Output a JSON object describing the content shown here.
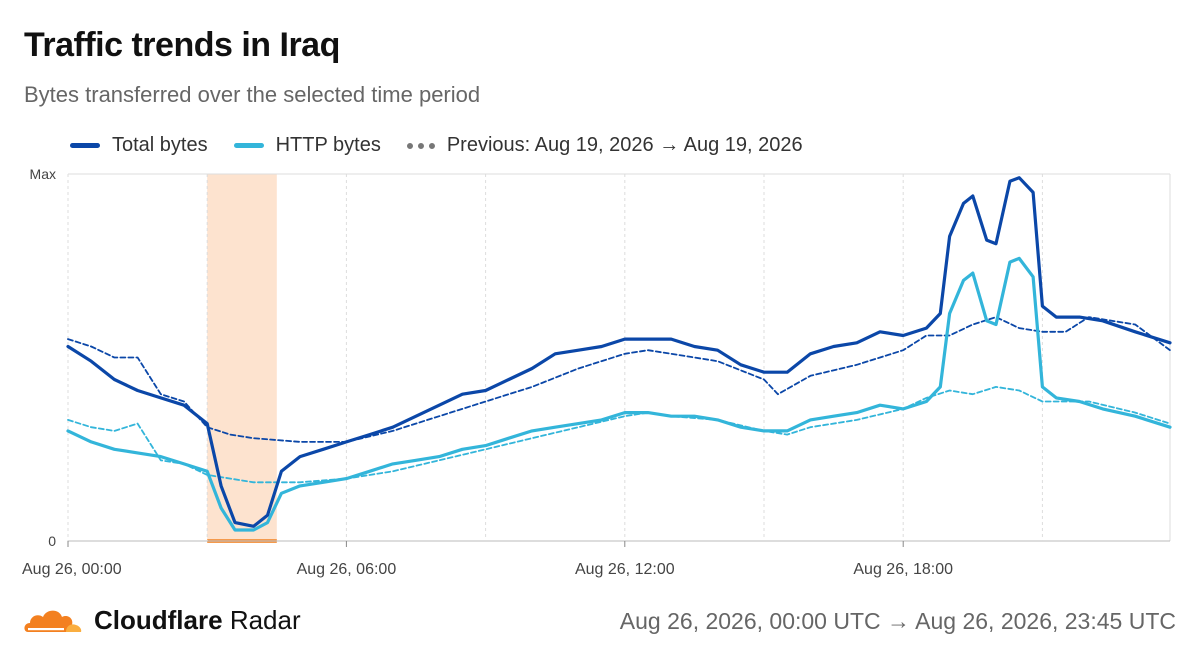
{
  "title": "Traffic trends in Iraq",
  "subtitle": "Bytes transferred over the selected time period",
  "legend": {
    "total": "Total bytes",
    "http": "HTTP bytes",
    "previous": "Previous: Aug 19, 2026 → Aug 19, 2026"
  },
  "colors": {
    "total": "#0b47a8",
    "http": "#33b5da",
    "previous_total": "#0b47a8",
    "previous_http": "#33b5da",
    "highlight_fill": "#fde3cf",
    "highlight_base": "#f59a4c",
    "grid": "#dddddd"
  },
  "footer": {
    "brand_bold": "Cloudflare",
    "brand_light": "Radar",
    "range": "Aug 26, 2026, 00:00 UTC → Aug 26, 2026, 23:45 UTC"
  },
  "chart_data": {
    "type": "line",
    "x_unit": "hours since Aug 26, 2026 00:00 UTC",
    "xlim": [
      0,
      23.75
    ],
    "ylim": [
      0,
      1
    ],
    "y_tick_labels": [
      "0",
      "Max"
    ],
    "x_ticks": [
      {
        "x": 0,
        "label": "Aug 26, 00:00"
      },
      {
        "x": 6,
        "label": "Aug 26, 06:00"
      },
      {
        "x": 12,
        "label": "Aug 26, 12:00"
      },
      {
        "x": 18,
        "label": "Aug 26, 18:00"
      }
    ],
    "minor_gridlines_x": [
      0,
      3,
      6,
      9,
      12,
      15,
      18,
      21
    ],
    "highlight_region": [
      3,
      4.5
    ],
    "grid": true,
    "legend_position": "top-left",
    "series": [
      {
        "name": "Total bytes",
        "style": "solid",
        "points": [
          [
            0,
            0.53
          ],
          [
            0.5,
            0.49
          ],
          [
            1,
            0.44
          ],
          [
            1.5,
            0.41
          ],
          [
            2,
            0.39
          ],
          [
            2.5,
            0.37
          ],
          [
            3,
            0.32
          ],
          [
            3.3,
            0.15
          ],
          [
            3.6,
            0.05
          ],
          [
            4,
            0.04
          ],
          [
            4.3,
            0.07
          ],
          [
            4.6,
            0.19
          ],
          [
            5,
            0.23
          ],
          [
            5.5,
            0.25
          ],
          [
            6,
            0.27
          ],
          [
            6.5,
            0.29
          ],
          [
            7,
            0.31
          ],
          [
            7.5,
            0.34
          ],
          [
            8,
            0.37
          ],
          [
            8.5,
            0.4
          ],
          [
            9,
            0.41
          ],
          [
            9.5,
            0.44
          ],
          [
            10,
            0.47
          ],
          [
            10.5,
            0.51
          ],
          [
            11,
            0.52
          ],
          [
            11.5,
            0.53
          ],
          [
            12,
            0.55
          ],
          [
            12.5,
            0.55
          ],
          [
            13,
            0.55
          ],
          [
            13.5,
            0.53
          ],
          [
            14,
            0.52
          ],
          [
            14.5,
            0.48
          ],
          [
            15,
            0.46
          ],
          [
            15.5,
            0.46
          ],
          [
            16,
            0.51
          ],
          [
            16.5,
            0.53
          ],
          [
            17,
            0.54
          ],
          [
            17.5,
            0.57
          ],
          [
            18,
            0.56
          ],
          [
            18.5,
            0.58
          ],
          [
            18.8,
            0.62
          ],
          [
            19,
            0.83
          ],
          [
            19.3,
            0.92
          ],
          [
            19.5,
            0.94
          ],
          [
            19.8,
            0.82
          ],
          [
            20,
            0.81
          ],
          [
            20.3,
            0.98
          ],
          [
            20.5,
            0.99
          ],
          [
            20.8,
            0.95
          ],
          [
            21,
            0.64
          ],
          [
            21.3,
            0.61
          ],
          [
            21.8,
            0.61
          ],
          [
            22.3,
            0.6
          ],
          [
            23,
            0.57
          ],
          [
            23.75,
            0.54
          ]
        ]
      },
      {
        "name": "HTTP bytes",
        "style": "solid",
        "points": [
          [
            0,
            0.3
          ],
          [
            0.5,
            0.27
          ],
          [
            1,
            0.25
          ],
          [
            1.5,
            0.24
          ],
          [
            2,
            0.23
          ],
          [
            2.5,
            0.21
          ],
          [
            3,
            0.19
          ],
          [
            3.3,
            0.09
          ],
          [
            3.6,
            0.03
          ],
          [
            4,
            0.03
          ],
          [
            4.3,
            0.05
          ],
          [
            4.6,
            0.13
          ],
          [
            5,
            0.15
          ],
          [
            5.5,
            0.16
          ],
          [
            6,
            0.17
          ],
          [
            6.5,
            0.19
          ],
          [
            7,
            0.21
          ],
          [
            7.5,
            0.22
          ],
          [
            8,
            0.23
          ],
          [
            8.5,
            0.25
          ],
          [
            9,
            0.26
          ],
          [
            9.5,
            0.28
          ],
          [
            10,
            0.3
          ],
          [
            10.5,
            0.31
          ],
          [
            11,
            0.32
          ],
          [
            11.5,
            0.33
          ],
          [
            12,
            0.35
          ],
          [
            12.5,
            0.35
          ],
          [
            13,
            0.34
          ],
          [
            13.5,
            0.34
          ],
          [
            14,
            0.33
          ],
          [
            14.5,
            0.31
          ],
          [
            15,
            0.3
          ],
          [
            15.5,
            0.3
          ],
          [
            16,
            0.33
          ],
          [
            16.5,
            0.34
          ],
          [
            17,
            0.35
          ],
          [
            17.5,
            0.37
          ],
          [
            18,
            0.36
          ],
          [
            18.5,
            0.38
          ],
          [
            18.8,
            0.42
          ],
          [
            19,
            0.62
          ],
          [
            19.3,
            0.71
          ],
          [
            19.5,
            0.73
          ],
          [
            19.8,
            0.6
          ],
          [
            20,
            0.59
          ],
          [
            20.3,
            0.76
          ],
          [
            20.5,
            0.77
          ],
          [
            20.8,
            0.72
          ],
          [
            21,
            0.42
          ],
          [
            21.3,
            0.39
          ],
          [
            21.8,
            0.38
          ],
          [
            22.3,
            0.36
          ],
          [
            23,
            0.34
          ],
          [
            23.75,
            0.31
          ]
        ]
      },
      {
        "name": "Previous: Aug 19, 2026 → Aug 19, 2026",
        "style": "dashed",
        "points": [
          [
            0,
            0.55
          ],
          [
            0.5,
            0.53
          ],
          [
            1,
            0.5
          ],
          [
            1.5,
            0.5
          ],
          [
            2,
            0.4
          ],
          [
            2.5,
            0.38
          ],
          [
            3,
            0.31
          ],
          [
            3.5,
            0.29
          ],
          [
            4,
            0.28
          ],
          [
            5,
            0.27
          ],
          [
            6,
            0.27
          ],
          [
            7,
            0.3
          ],
          [
            8,
            0.34
          ],
          [
            9,
            0.38
          ],
          [
            10,
            0.42
          ],
          [
            11,
            0.47
          ],
          [
            12,
            0.51
          ],
          [
            12.5,
            0.52
          ],
          [
            13,
            0.51
          ],
          [
            14,
            0.49
          ],
          [
            15,
            0.44
          ],
          [
            15.3,
            0.4
          ],
          [
            16,
            0.45
          ],
          [
            17,
            0.48
          ],
          [
            18,
            0.52
          ],
          [
            18.5,
            0.56
          ],
          [
            19,
            0.56
          ],
          [
            19.5,
            0.59
          ],
          [
            20,
            0.61
          ],
          [
            20.5,
            0.58
          ],
          [
            21,
            0.57
          ],
          [
            21.5,
            0.57
          ],
          [
            22,
            0.61
          ],
          [
            23,
            0.59
          ],
          [
            23.75,
            0.52
          ]
        ]
      },
      {
        "name": "Previous: Aug 19, 2026 → Aug 19, 2026",
        "style": "dashed",
        "points": [
          [
            0,
            0.33
          ],
          [
            0.5,
            0.31
          ],
          [
            1,
            0.3
          ],
          [
            1.5,
            0.32
          ],
          [
            2,
            0.22
          ],
          [
            2.5,
            0.21
          ],
          [
            3,
            0.18
          ],
          [
            3.5,
            0.17
          ],
          [
            4,
            0.16
          ],
          [
            5,
            0.16
          ],
          [
            6,
            0.17
          ],
          [
            7,
            0.19
          ],
          [
            8,
            0.22
          ],
          [
            9,
            0.25
          ],
          [
            10,
            0.28
          ],
          [
            11,
            0.31
          ],
          [
            12,
            0.34
          ],
          [
            12.5,
            0.35
          ],
          [
            13,
            0.34
          ],
          [
            14,
            0.33
          ],
          [
            15,
            0.3
          ],
          [
            15.5,
            0.29
          ],
          [
            16,
            0.31
          ],
          [
            17,
            0.33
          ],
          [
            18,
            0.36
          ],
          [
            18.5,
            0.39
          ],
          [
            19,
            0.41
          ],
          [
            19.5,
            0.4
          ],
          [
            20,
            0.42
          ],
          [
            20.5,
            0.41
          ],
          [
            21,
            0.38
          ],
          [
            21.5,
            0.38
          ],
          [
            22,
            0.38
          ],
          [
            23,
            0.35
          ],
          [
            23.75,
            0.32
          ]
        ]
      }
    ]
  }
}
